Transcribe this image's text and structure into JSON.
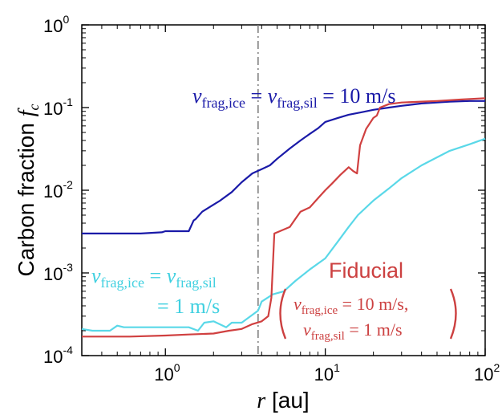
{
  "chart_data": {
    "type": "line",
    "xscale": "log",
    "yscale": "log",
    "xlim": [
      0.3,
      100
    ],
    "ylim": [
      0.0001,
      1
    ],
    "xlabel": {
      "var": "r",
      "unit": "[au]"
    },
    "ylabel": {
      "text": "Carbon fraction",
      "var": "f",
      "sub": "c"
    },
    "x_ticks": [
      {
        "base": "10",
        "exp": "0",
        "value": 1
      },
      {
        "base": "10",
        "exp": "1",
        "value": 10
      },
      {
        "base": "10",
        "exp": "2",
        "value": 100
      }
    ],
    "y_ticks": [
      {
        "base": "10",
        "exp": "-4",
        "value": 0.0001
      },
      {
        "base": "10",
        "exp": "-3",
        "value": 0.001
      },
      {
        "base": "10",
        "exp": "-2",
        "value": 0.01
      },
      {
        "base": "10",
        "exp": "-1",
        "value": 0.1
      },
      {
        "base": "10",
        "exp": "0",
        "value": 1
      }
    ],
    "vline": {
      "x": 3.8,
      "color": "#808080",
      "style": "dash-dot"
    },
    "series": [
      {
        "color": "#1a1aa8",
        "points": [
          [
            0.3,
            0.003
          ],
          [
            0.7,
            0.003
          ],
          [
            0.95,
            0.0031
          ],
          [
            1.0,
            0.0032
          ],
          [
            1.4,
            0.0032
          ],
          [
            1.5,
            0.0043
          ],
          [
            1.55,
            0.0045
          ],
          [
            1.7,
            0.0055
          ],
          [
            2.0,
            0.0067
          ],
          [
            2.2,
            0.0075
          ],
          [
            2.6,
            0.0095
          ],
          [
            3.0,
            0.0125
          ],
          [
            3.5,
            0.016
          ],
          [
            4.0,
            0.018
          ],
          [
            4.5,
            0.02
          ],
          [
            5.0,
            0.024
          ],
          [
            6.0,
            0.032
          ],
          [
            7.0,
            0.04
          ],
          [
            8.0,
            0.048
          ],
          [
            9.0,
            0.056
          ],
          [
            10.0,
            0.067
          ],
          [
            12.0,
            0.075
          ],
          [
            14.0,
            0.082
          ],
          [
            17.0,
            0.088
          ],
          [
            20.0,
            0.094
          ],
          [
            25.0,
            0.1
          ],
          [
            30.0,
            0.105
          ],
          [
            40.0,
            0.112
          ],
          [
            50.0,
            0.115
          ],
          [
            60.0,
            0.118
          ],
          [
            80.0,
            0.12
          ],
          [
            100.0,
            0.12
          ]
        ]
      },
      {
        "color": "#5ad8e8",
        "points": [
          [
            0.3,
            0.00021
          ],
          [
            0.35,
            0.0002
          ],
          [
            0.45,
            0.0002
          ],
          [
            0.5,
            0.00023
          ],
          [
            0.55,
            0.00022
          ],
          [
            0.7,
            0.00022
          ],
          [
            1.0,
            0.00022
          ],
          [
            1.4,
            0.00022
          ],
          [
            1.6,
            0.0002
          ],
          [
            1.75,
            0.00025
          ],
          [
            2.0,
            0.00026
          ],
          [
            2.4,
            0.00022
          ],
          [
            2.6,
            0.00025
          ],
          [
            3.0,
            0.00025
          ],
          [
            3.8,
            0.00035
          ],
          [
            4.0,
            0.00045
          ],
          [
            4.7,
            0.00055
          ],
          [
            5.5,
            0.0006
          ],
          [
            6.5,
            0.0008
          ],
          [
            8.0,
            0.0011
          ],
          [
            10.0,
            0.0015
          ],
          [
            12.0,
            0.0024
          ],
          [
            14.0,
            0.0036
          ],
          [
            16.0,
            0.005
          ],
          [
            20.0,
            0.0075
          ],
          [
            25.0,
            0.0105
          ],
          [
            30.0,
            0.014
          ],
          [
            40.0,
            0.02
          ],
          [
            50.0,
            0.025
          ],
          [
            60.0,
            0.03
          ],
          [
            80.0,
            0.036
          ],
          [
            100.0,
            0.042
          ]
        ]
      },
      {
        "color": "#d04040",
        "points": [
          [
            0.3,
            0.00017
          ],
          [
            0.6,
            0.00017
          ],
          [
            1.0,
            0.000175
          ],
          [
            1.4,
            0.00018
          ],
          [
            2.0,
            0.000185
          ],
          [
            2.5,
            0.0002
          ],
          [
            3.0,
            0.00021
          ],
          [
            3.5,
            0.00024
          ],
          [
            4.0,
            0.00026
          ],
          [
            4.4,
            0.0003
          ],
          [
            4.6,
            0.0005
          ],
          [
            4.8,
            0.003
          ],
          [
            5.2,
            0.0032
          ],
          [
            6.0,
            0.0036
          ],
          [
            6.5,
            0.0045
          ],
          [
            7.0,
            0.0055
          ],
          [
            8.0,
            0.0062
          ],
          [
            9.0,
            0.008
          ],
          [
            10.0,
            0.01
          ],
          [
            11.0,
            0.012
          ],
          [
            12.5,
            0.0155
          ],
          [
            14.0,
            0.019
          ],
          [
            15.0,
            0.017
          ],
          [
            15.8,
            0.016
          ],
          [
            16.5,
            0.035
          ],
          [
            18.0,
            0.055
          ],
          [
            20.0,
            0.075
          ],
          [
            21.0,
            0.08
          ],
          [
            22.0,
            0.1
          ],
          [
            25.0,
            0.11
          ],
          [
            30.0,
            0.115
          ],
          [
            40.0,
            0.118
          ],
          [
            50.0,
            0.12
          ],
          [
            70.0,
            0.125
          ],
          [
            100.0,
            0.13
          ]
        ]
      }
    ],
    "annotations": [
      {
        "color": "#1a1aa8",
        "v": "v",
        "sub1": "frag,ice",
        "sub2": "frag,sil",
        "eq": "=",
        "value": "10 m/s"
      },
      {
        "color": "#40d0e0",
        "v": "v",
        "sub1": "frag,ice",
        "sub2": "frag,sil",
        "eq": "=",
        "value": "= 1 m/s"
      },
      {
        "color": "#cc4040",
        "title": "Fiducial",
        "line1_sub": "frag,ice",
        "line1_value": "= 10 m/s,",
        "line2_sub": "frag,sil",
        "line2_value": "= 1 m/s"
      }
    ]
  }
}
